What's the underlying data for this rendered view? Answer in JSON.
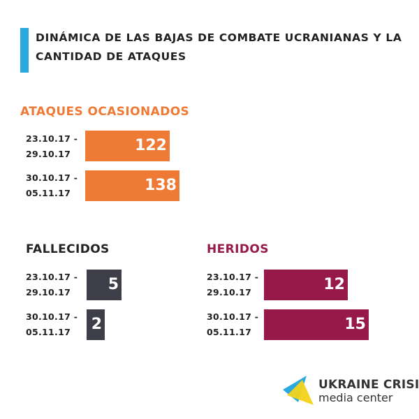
{
  "title": "DINÁMICA DE LAS BAJAS DE COMBATE UCRANIANAS Y LA CANTIDAD DE ATAQUES",
  "colors": {
    "accent": "#29A9DF",
    "attacks": "#EE7A36",
    "killed": "#3E3E48",
    "wounded": "#96194A"
  },
  "chart_data": [
    {
      "type": "bar",
      "title": "ATAQUES OCASIONADOS",
      "categories": [
        "23.10.17 - 29.10.17",
        "30.10.17 - 05.11.17"
      ],
      "category_lines": [
        [
          "23.10.17 -",
          "29.10.17"
        ],
        [
          "30.10.17 -",
          "05.11.17"
        ]
      ],
      "values": [
        122,
        138
      ],
      "color": "#EE7A36"
    },
    {
      "type": "bar",
      "title": "FALLECIDOS",
      "categories": [
        "23.10.17 - 29.10.17",
        "30.10.17 - 05.11.17"
      ],
      "category_lines": [
        [
          "23.10.17 -",
          "29.10.17"
        ],
        [
          "30.10.17 -",
          "05.11.17"
        ]
      ],
      "values": [
        5,
        2
      ],
      "color": "#3E3E48"
    },
    {
      "type": "bar",
      "title": "HERIDOS",
      "categories": [
        "23.10.17 - 29.10.17",
        "30.10.17 - 05.11.17"
      ],
      "category_lines": [
        [
          "23.10.17 -",
          "29.10.17"
        ],
        [
          "30.10.17 -",
          "05.11.17"
        ]
      ],
      "values": [
        12,
        15
      ],
      "color": "#96194A"
    }
  ],
  "logo": {
    "line1": "UKRAINE CRISIS",
    "line2": "media center"
  }
}
